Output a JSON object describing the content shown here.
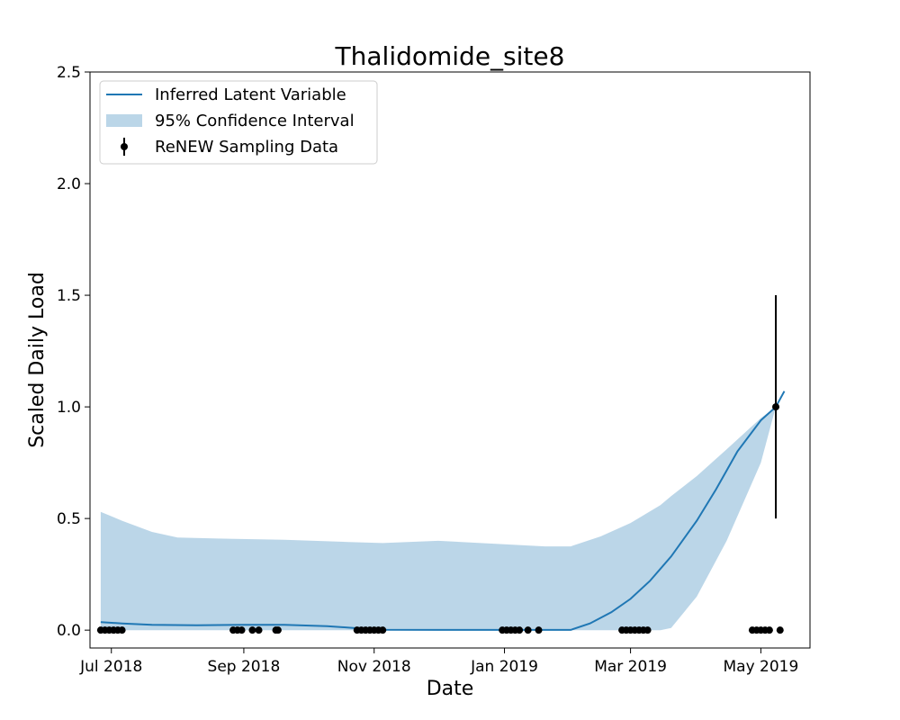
{
  "chart_data": {
    "type": "line",
    "title": "Thalidomide_site8",
    "xlabel": "Date",
    "ylabel": "Scaled Daily Load",
    "xlim": [
      "2018-06-21",
      "2019-05-24"
    ],
    "ylim": [
      -0.08,
      2.5
    ],
    "x_ticks": [
      {
        "date": "2018-07-01",
        "label": "Jul 2018"
      },
      {
        "date": "2018-09-01",
        "label": "Sep 2018"
      },
      {
        "date": "2018-11-01",
        "label": "Nov 2018"
      },
      {
        "date": "2019-01-01",
        "label": "Jan 2019"
      },
      {
        "date": "2019-03-01",
        "label": "Mar 2019"
      },
      {
        "date": "2019-05-01",
        "label": "May 2019"
      }
    ],
    "y_ticks": [
      {
        "value": 0.0,
        "label": "0.0"
      },
      {
        "value": 0.5,
        "label": "0.5"
      },
      {
        "value": 1.0,
        "label": "1.0"
      },
      {
        "value": 1.5,
        "label": "1.5"
      },
      {
        "value": 2.0,
        "label": "2.0"
      },
      {
        "value": 2.5,
        "label": "2.5"
      }
    ],
    "grid": false,
    "legend_position": "top-left",
    "colors": {
      "line": "#1f77b4",
      "band": "#1f77b4",
      "points": "#000000"
    },
    "series": [
      {
        "name": "Inferred Latent Variable",
        "kind": "line",
        "points": [
          {
            "x": "2018-06-26",
            "y": 0.036
          },
          {
            "x": "2018-07-06",
            "y": 0.03
          },
          {
            "x": "2018-07-20",
            "y": 0.024
          },
          {
            "x": "2018-08-10",
            "y": 0.022
          },
          {
            "x": "2018-09-01",
            "y": 0.024
          },
          {
            "x": "2018-09-20",
            "y": 0.024
          },
          {
            "x": "2018-10-10",
            "y": 0.018
          },
          {
            "x": "2018-10-25",
            "y": 0.008
          },
          {
            "x": "2018-11-05",
            "y": 0.002
          },
          {
            "x": "2018-12-01",
            "y": 0.001
          },
          {
            "x": "2019-01-01",
            "y": 0.001
          },
          {
            "x": "2019-02-01",
            "y": 0.001
          },
          {
            "x": "2019-02-10",
            "y": 0.03
          },
          {
            "x": "2019-02-20",
            "y": 0.08
          },
          {
            "x": "2019-03-01",
            "y": 0.14
          },
          {
            "x": "2019-03-10",
            "y": 0.22
          },
          {
            "x": "2019-03-20",
            "y": 0.33
          },
          {
            "x": "2019-04-01",
            "y": 0.49
          },
          {
            "x": "2019-04-10",
            "y": 0.63
          },
          {
            "x": "2019-04-20",
            "y": 0.8
          },
          {
            "x": "2019-05-01",
            "y": 0.94
          },
          {
            "x": "2019-05-08",
            "y": 1.0
          },
          {
            "x": "2019-05-12",
            "y": 1.07
          }
        ]
      },
      {
        "name": "95% Confidence Interval",
        "kind": "band",
        "points": [
          {
            "x": "2018-06-26",
            "lower": 0.0,
            "upper": 0.53
          },
          {
            "x": "2018-07-06",
            "lower": 0.0,
            "upper": 0.49
          },
          {
            "x": "2018-07-20",
            "lower": 0.0,
            "upper": 0.44
          },
          {
            "x": "2018-08-01",
            "lower": 0.0,
            "upper": 0.415
          },
          {
            "x": "2018-08-20",
            "lower": 0.0,
            "upper": 0.41
          },
          {
            "x": "2018-09-20",
            "lower": 0.0,
            "upper": 0.405
          },
          {
            "x": "2018-10-20",
            "lower": 0.0,
            "upper": 0.395
          },
          {
            "x": "2018-11-05",
            "lower": 0.0,
            "upper": 0.39
          },
          {
            "x": "2018-12-01",
            "lower": 0.0,
            "upper": 0.4
          },
          {
            "x": "2019-01-01",
            "lower": 0.0,
            "upper": 0.385
          },
          {
            "x": "2019-01-20",
            "lower": 0.0,
            "upper": 0.375
          },
          {
            "x": "2019-02-01",
            "lower": 0.0,
            "upper": 0.375
          },
          {
            "x": "2019-02-15",
            "lower": 0.0,
            "upper": 0.42
          },
          {
            "x": "2019-03-01",
            "lower": 0.0,
            "upper": 0.48
          },
          {
            "x": "2019-03-15",
            "lower": 0.0,
            "upper": 0.56
          },
          {
            "x": "2019-03-20",
            "lower": 0.01,
            "upper": 0.6
          },
          {
            "x": "2019-04-01",
            "lower": 0.15,
            "upper": 0.69
          },
          {
            "x": "2019-04-15",
            "lower": 0.4,
            "upper": 0.81
          },
          {
            "x": "2019-05-01",
            "lower": 0.75,
            "upper": 0.95
          },
          {
            "x": "2019-05-08",
            "lower": 1.0,
            "upper": 1.0
          }
        ]
      },
      {
        "name": "ReNEW Sampling Data",
        "kind": "scatter_errorbar",
        "points": [
          {
            "x": "2018-06-26",
            "y": 0.0
          },
          {
            "x": "2018-06-28",
            "y": 0.0
          },
          {
            "x": "2018-06-30",
            "y": 0.0
          },
          {
            "x": "2018-07-02",
            "y": 0.0
          },
          {
            "x": "2018-07-04",
            "y": 0.0
          },
          {
            "x": "2018-07-06",
            "y": 0.0
          },
          {
            "x": "2018-08-27",
            "y": 0.0
          },
          {
            "x": "2018-08-29",
            "y": 0.0
          },
          {
            "x": "2018-08-31",
            "y": 0.0
          },
          {
            "x": "2018-09-05",
            "y": 0.0
          },
          {
            "x": "2018-09-08",
            "y": 0.0
          },
          {
            "x": "2018-09-16",
            "y": 0.0
          },
          {
            "x": "2018-09-17",
            "y": 0.0
          },
          {
            "x": "2018-10-24",
            "y": 0.0
          },
          {
            "x": "2018-10-26",
            "y": 0.0
          },
          {
            "x": "2018-10-28",
            "y": 0.0
          },
          {
            "x": "2018-10-30",
            "y": 0.0
          },
          {
            "x": "2018-11-01",
            "y": 0.0
          },
          {
            "x": "2018-11-03",
            "y": 0.0
          },
          {
            "x": "2018-11-05",
            "y": 0.0
          },
          {
            "x": "2018-12-31",
            "y": 0.0
          },
          {
            "x": "2019-01-02",
            "y": 0.0
          },
          {
            "x": "2019-01-04",
            "y": 0.0
          },
          {
            "x": "2019-01-06",
            "y": 0.0
          },
          {
            "x": "2019-01-08",
            "y": 0.0
          },
          {
            "x": "2019-01-12",
            "y": 0.0
          },
          {
            "x": "2019-01-17",
            "y": 0.0
          },
          {
            "x": "2019-02-25",
            "y": 0.0
          },
          {
            "x": "2019-02-27",
            "y": 0.0
          },
          {
            "x": "2019-03-01",
            "y": 0.0
          },
          {
            "x": "2019-03-03",
            "y": 0.0
          },
          {
            "x": "2019-03-05",
            "y": 0.0
          },
          {
            "x": "2019-03-07",
            "y": 0.0
          },
          {
            "x": "2019-03-09",
            "y": 0.0
          },
          {
            "x": "2019-04-27",
            "y": 0.0
          },
          {
            "x": "2019-04-29",
            "y": 0.0
          },
          {
            "x": "2019-05-01",
            "y": 0.0
          },
          {
            "x": "2019-05-03",
            "y": 0.0
          },
          {
            "x": "2019-05-05",
            "y": 0.0
          },
          {
            "x": "2019-05-10",
            "y": 0.0
          },
          {
            "x": "2019-05-08",
            "y": 1.0,
            "y_err": 0.5
          }
        ]
      }
    ]
  }
}
